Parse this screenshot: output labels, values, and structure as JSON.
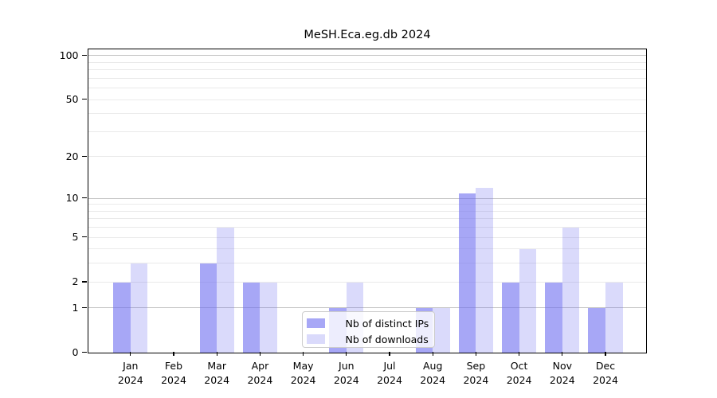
{
  "chart_data": {
    "type": "bar",
    "title": "MeSH.Eca.eg.db 2024",
    "categories": [
      "Jan",
      "Feb",
      "Mar",
      "Apr",
      "May",
      "Jun",
      "Jul",
      "Aug",
      "Sep",
      "Oct",
      "Nov",
      "Dec"
    ],
    "x_year_label": "2024",
    "series": [
      {
        "name": "Nb of distinct IPs",
        "color": "#6c6cf099",
        "values": [
          2,
          0,
          3,
          2,
          0,
          1,
          0,
          1,
          11,
          2,
          2,
          1
        ]
      },
      {
        "name": "Nb of downloads",
        "color": "#6c6cf040",
        "values": [
          3,
          0,
          6,
          2,
          0,
          2,
          0,
          1,
          12,
          4,
          6,
          2
        ]
      }
    ],
    "y_scale": "log10(1+x)",
    "y_ticks": [
      {
        "value": 0,
        "label": "0",
        "emphasis": false
      },
      {
        "value": 1,
        "label": "1",
        "emphasis": true
      },
      {
        "value": 2,
        "label": "2",
        "emphasis": false
      },
      {
        "value": 5,
        "label": "5",
        "emphasis": false
      },
      {
        "value": 10,
        "label": "10",
        "emphasis": true
      },
      {
        "value": 20,
        "label": "20",
        "emphasis": false
      },
      {
        "value": 50,
        "label": "50",
        "emphasis": false
      },
      {
        "value": 100,
        "label": "100",
        "emphasis": true
      }
    ],
    "minor_gridlines": [
      3,
      4,
      6,
      7,
      8,
      9,
      30,
      40,
      60,
      70,
      80,
      90
    ],
    "grid": true,
    "legend_position": "bottom-center",
    "colors": {
      "axis": "#000000",
      "grid_major": "#c3c3c3",
      "grid_minor": "#eaeaea",
      "background": "#ffffff"
    }
  }
}
